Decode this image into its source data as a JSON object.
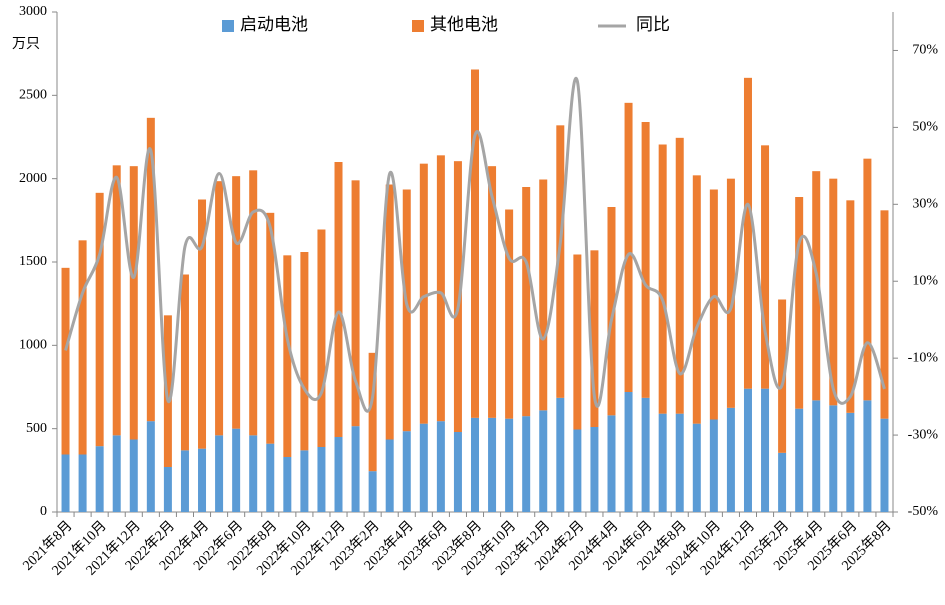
{
  "chart_data": {
    "type": "bar_line",
    "y_label": "万只",
    "categories": [
      "2021年8月",
      null,
      "2021年10月",
      null,
      "2021年12月",
      null,
      "2022年2月",
      null,
      "2022年4月",
      null,
      "2022年6月",
      null,
      "2022年8月",
      null,
      "2022年10月",
      null,
      "2022年12月",
      null,
      "2023年2月",
      null,
      "2023年4月",
      null,
      "2023年6月",
      null,
      "2023年8月",
      null,
      "2023年10月",
      null,
      "2023年12月",
      null,
      "2024年2月",
      null,
      "2024年4月",
      null,
      "2024年6月",
      null,
      "2024年8月",
      null,
      "2024年10月",
      null,
      "2024年12月",
      null,
      "2025年2月",
      null,
      "2025年4月",
      null,
      "2025年6月",
      null,
      "2025年8月"
    ],
    "series": [
      {
        "name": "启动电池",
        "color": "#5b9bd5",
        "kind": "bar",
        "values": [
          345,
          345,
          395,
          460,
          435,
          545,
          270,
          370,
          380,
          460,
          500,
          460,
          410,
          330,
          370,
          390,
          450,
          515,
          245,
          435,
          485,
          530,
          545,
          480,
          565,
          565,
          560,
          575,
          610,
          685,
          495,
          510,
          580,
          720,
          685,
          590,
          590,
          530,
          555,
          625,
          740,
          740,
          355,
          620,
          670,
          640,
          595,
          670,
          560
        ]
      },
      {
        "name": "其他电池",
        "color": "#ed7d31",
        "kind": "bar",
        "values": [
          1120,
          1285,
          1520,
          1620,
          1640,
          1820,
          910,
          1055,
          1495,
          1525,
          1515,
          1590,
          1385,
          1210,
          1190,
          1305,
          1650,
          1475,
          710,
          1530,
          1450,
          1560,
          1595,
          1625,
          2090,
          1510,
          1255,
          1375,
          1385,
          1635,
          1050,
          1060,
          1250,
          1735,
          1655,
          1615,
          1655,
          1490,
          1380,
          1375,
          1865,
          1460,
          920,
          1270,
          1375,
          1360,
          1275,
          1450,
          1250
        ]
      },
      {
        "name": "同比",
        "color": "#a5a5a5",
        "kind": "line",
        "axis": "y2",
        "values": [
          -8,
          7,
          17,
          37,
          11,
          44,
          -21,
          19,
          19,
          38,
          20,
          28,
          24,
          -5,
          -18,
          -19,
          2,
          -16,
          -20,
          38,
          4,
          6,
          7,
          3,
          48,
          32,
          16,
          15,
          -5,
          20,
          62,
          -20,
          0,
          17,
          9,
          5,
          -14,
          -2,
          6,
          3,
          30,
          -3,
          -17,
          20,
          12,
          -18,
          -20,
          -6,
          -18
        ]
      }
    ],
    "ylim": [
      0,
      3000
    ],
    "yticks": [
      0,
      500,
      1000,
      1500,
      2000,
      2500,
      3000
    ],
    "y2lim": [
      -50,
      80
    ],
    "y2ticks": [
      {
        "value": -50,
        "label": "-50%"
      },
      {
        "value": -30,
        "label": "-30%"
      },
      {
        "value": -10,
        "label": "-10%"
      },
      {
        "value": 10,
        "label": "10%"
      },
      {
        "value": 30,
        "label": "30%"
      },
      {
        "value": 50,
        "label": "50%"
      },
      {
        "value": 70,
        "label": "70%"
      }
    ],
    "legend": "top"
  }
}
